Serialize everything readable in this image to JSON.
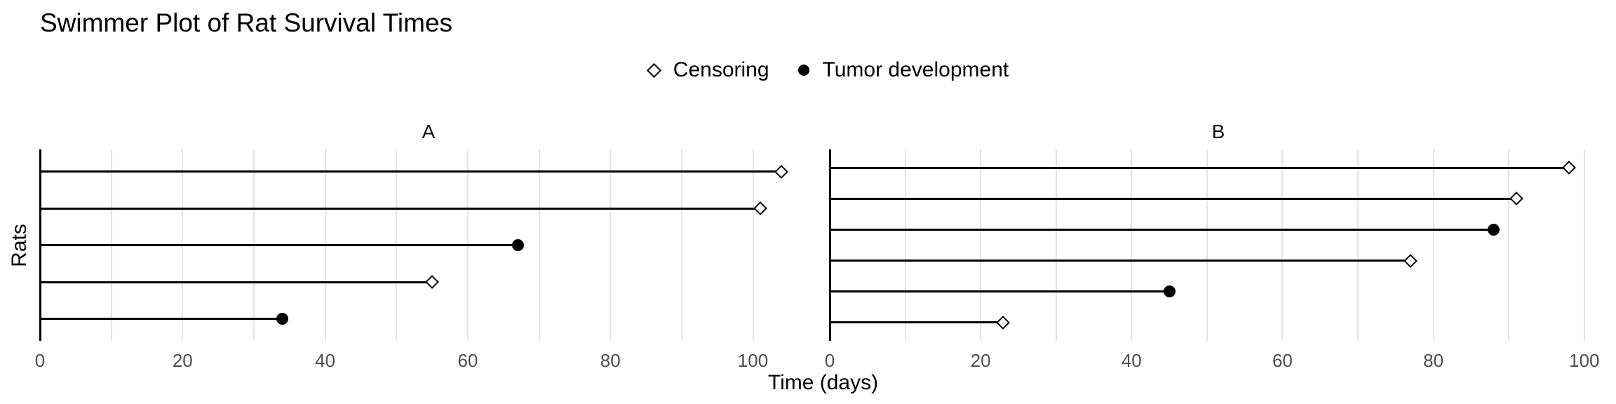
{
  "title": "Swimmer Plot of Rat Survival Times",
  "legend": {
    "position": "top-center",
    "items": [
      {
        "label": "Censoring",
        "marker": "open-diamond-icon"
      },
      {
        "label": "Tumor development",
        "marker": "filled-circle-icon"
      }
    ]
  },
  "axes": {
    "x_label": "Time (days)",
    "y_label": "Rats",
    "x_tick_labels": [
      0,
      20,
      40,
      60,
      80,
      100
    ]
  },
  "colors": {
    "foreground": "#000000",
    "background": "#FFFFFF",
    "gridline": "#E5E5E5",
    "tick_label": "#4D4D4D"
  },
  "chart_data": {
    "type": "swimmer",
    "title": "Swimmer Plot of Rat Survival Times",
    "xlabel": "Time (days)",
    "ylabel": "Rats",
    "legend_position": "top-center",
    "grid": "vertical gridlines every 10 days",
    "marker_legend": {
      "open-diamond": "Censoring",
      "filled-circle": "Tumor development"
    },
    "facets": [
      {
        "label": "A",
        "xlim": [
          0,
          109
        ],
        "x_ticks": [
          0,
          20,
          40,
          60,
          80,
          100
        ],
        "rats_top_to_bottom": [
          {
            "time_days": 104,
            "event": "Censoring"
          },
          {
            "time_days": 101,
            "event": "Censoring"
          },
          {
            "time_days": 67,
            "event": "Tumor development"
          },
          {
            "time_days": 55,
            "event": "Censoring"
          },
          {
            "time_days": 34,
            "event": "Tumor development"
          }
        ]
      },
      {
        "label": "B",
        "xlim": [
          0,
          103
        ],
        "x_ticks": [
          0,
          20,
          40,
          60,
          80,
          100
        ],
        "rats_top_to_bottom": [
          {
            "time_days": 98,
            "event": "Censoring"
          },
          {
            "time_days": 91,
            "event": "Censoring"
          },
          {
            "time_days": 88,
            "event": "Tumor development"
          },
          {
            "time_days": 77,
            "event": "Censoring"
          },
          {
            "time_days": 45,
            "event": "Tumor development"
          },
          {
            "time_days": 23,
            "event": "Censoring"
          }
        ]
      }
    ]
  }
}
